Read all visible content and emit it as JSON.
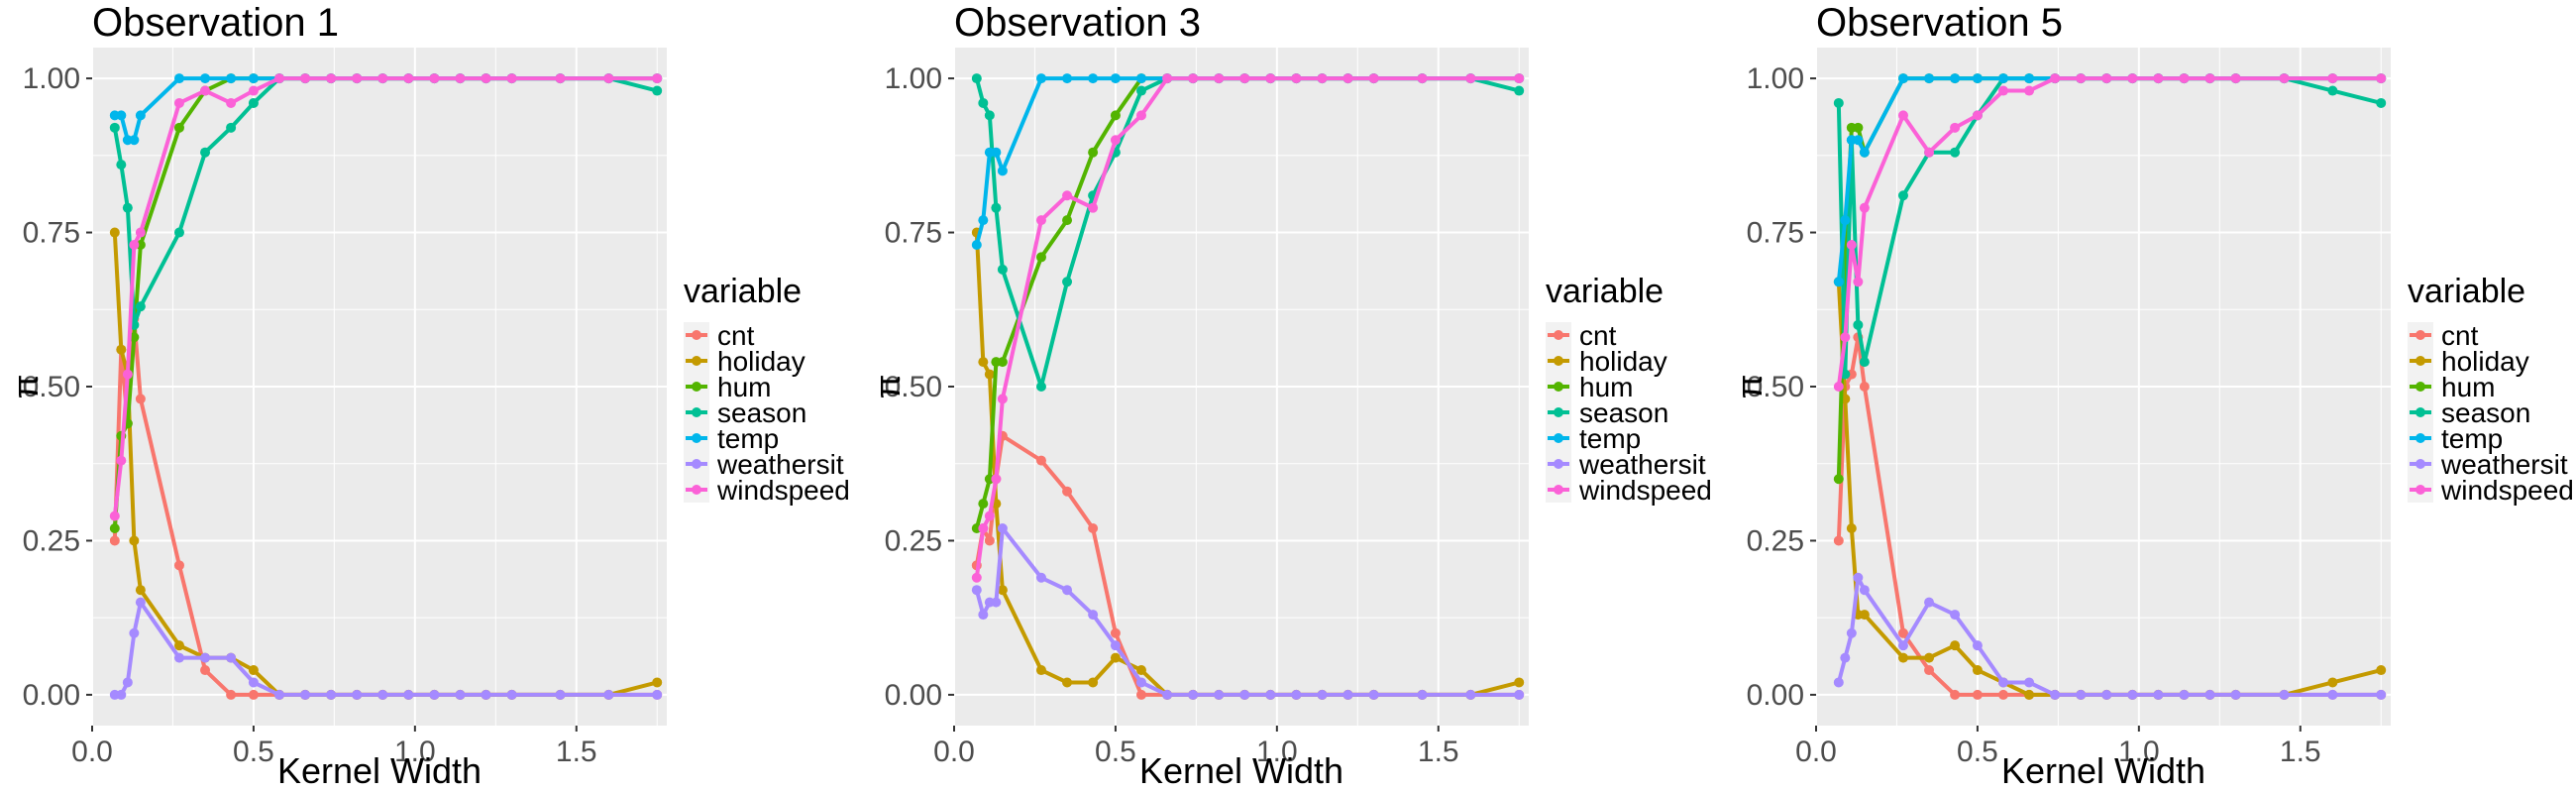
{
  "legend": {
    "title": "variable",
    "items": [
      {
        "name": "cnt",
        "color": "#F8766D"
      },
      {
        "name": "holiday",
        "color": "#C49A00"
      },
      {
        "name": "hum",
        "color": "#53B400"
      },
      {
        "name": "season",
        "color": "#00C094"
      },
      {
        "name": "temp",
        "color": "#00B6EB"
      },
      {
        "name": "weathersit",
        "color": "#A58AFF"
      },
      {
        "name": "windspeed",
        "color": "#FB61D7"
      }
    ]
  },
  "chart_data": [
    {
      "type": "line",
      "title": "Observation 1",
      "xlabel": "Kernel Width",
      "ylabel": "π",
      "xlim": [
        0,
        1.78
      ],
      "ylim": [
        0,
        1
      ],
      "xticks": [
        "0.0",
        "0.5",
        "1.0",
        "1.5"
      ],
      "yticks": [
        "0.00",
        "0.25",
        "0.50",
        "0.75",
        "1.00"
      ],
      "grid": true,
      "legend_position": "right",
      "series": [
        {
          "name": "cnt",
          "x": [
            0.07,
            0.09,
            0.11,
            0.13,
            0.15,
            0.27,
            0.35,
            0.43,
            0.5,
            0.58,
            0.66,
            0.74,
            0.82,
            0.9,
            0.98,
            1.06,
            1.14,
            1.22,
            1.3,
            1.45,
            1.6,
            1.75
          ],
          "y": [
            0.25,
            0.56,
            0.44,
            0.61,
            0.48,
            0.21,
            0.04,
            0,
            0,
            0,
            0,
            0,
            0,
            0,
            0,
            0,
            0,
            0,
            0,
            0,
            0,
            0
          ]
        },
        {
          "name": "holiday",
          "x": [
            0.07,
            0.09,
            0.11,
            0.13,
            0.15,
            0.27,
            0.35,
            0.43,
            0.5,
            0.58,
            0.66,
            0.74,
            0.82,
            0.9,
            0.98,
            1.06,
            1.14,
            1.22,
            1.3,
            1.45,
            1.6,
            1.75
          ],
          "y": [
            0.75,
            0.56,
            0.52,
            0.25,
            0.17,
            0.08,
            0.06,
            0.06,
            0.04,
            0,
            0,
            0,
            0,
            0,
            0,
            0,
            0,
            0,
            0,
            0,
            0,
            0.02
          ]
        },
        {
          "name": "hum",
          "x": [
            0.07,
            0.09,
            0.11,
            0.13,
            0.15,
            0.27,
            0.35,
            0.43,
            0.5,
            0.58,
            0.66,
            0.74,
            0.82,
            0.9,
            0.98,
            1.06,
            1.14,
            1.22,
            1.3,
            1.45,
            1.6,
            1.75
          ],
          "y": [
            0.27,
            0.42,
            0.44,
            0.58,
            0.73,
            0.92,
            0.98,
            1,
            1,
            1,
            1,
            1,
            1,
            1,
            1,
            1,
            1,
            1,
            1,
            1,
            1,
            1
          ]
        },
        {
          "name": "season",
          "x": [
            0.07,
            0.09,
            0.11,
            0.13,
            0.15,
            0.27,
            0.35,
            0.43,
            0.5,
            0.58,
            0.66,
            0.74,
            0.82,
            0.9,
            0.98,
            1.06,
            1.14,
            1.22,
            1.3,
            1.45,
            1.6,
            1.75
          ],
          "y": [
            0.92,
            0.86,
            0.79,
            0.6,
            0.63,
            0.75,
            0.88,
            0.92,
            0.96,
            1,
            1,
            1,
            1,
            1,
            1,
            1,
            1,
            1,
            1,
            1,
            1,
            0.98
          ]
        },
        {
          "name": "temp",
          "x": [
            0.07,
            0.09,
            0.11,
            0.13,
            0.15,
            0.27,
            0.35,
            0.43,
            0.5,
            0.58,
            0.66,
            0.74,
            0.82,
            0.9,
            0.98,
            1.06,
            1.14,
            1.22,
            1.3,
            1.45,
            1.6,
            1.75
          ],
          "y": [
            0.94,
            0.94,
            0.9,
            0.9,
            0.94,
            1,
            1,
            1,
            1,
            1,
            1,
            1,
            1,
            1,
            1,
            1,
            1,
            1,
            1,
            1,
            1,
            1
          ]
        },
        {
          "name": "weathersit",
          "x": [
            0.07,
            0.09,
            0.11,
            0.13,
            0.15,
            0.27,
            0.35,
            0.43,
            0.5,
            0.58,
            0.66,
            0.74,
            0.82,
            0.9,
            0.98,
            1.06,
            1.14,
            1.22,
            1.3,
            1.45,
            1.6,
            1.75
          ],
          "y": [
            0,
            0,
            0.02,
            0.1,
            0.15,
            0.06,
            0.06,
            0.06,
            0.02,
            0,
            0,
            0,
            0,
            0,
            0,
            0,
            0,
            0,
            0,
            0,
            0,
            0
          ]
        },
        {
          "name": "windspeed",
          "x": [
            0.07,
            0.09,
            0.11,
            0.13,
            0.15,
            0.27,
            0.35,
            0.43,
            0.5,
            0.58,
            0.66,
            0.74,
            0.82,
            0.9,
            0.98,
            1.06,
            1.14,
            1.22,
            1.3,
            1.45,
            1.6,
            1.75
          ],
          "y": [
            0.29,
            0.38,
            0.52,
            0.73,
            0.75,
            0.96,
            0.98,
            0.96,
            0.98,
            1,
            1,
            1,
            1,
            1,
            1,
            1,
            1,
            1,
            1,
            1,
            1,
            1
          ]
        }
      ]
    },
    {
      "type": "line",
      "title": "Observation 3",
      "xlabel": "Kernel Width",
      "ylabel": "π",
      "xlim": [
        0,
        1.78
      ],
      "ylim": [
        0,
        1
      ],
      "xticks": [
        "0.0",
        "0.5",
        "1.0",
        "1.5"
      ],
      "yticks": [
        "0.00",
        "0.25",
        "0.50",
        "0.75",
        "1.00"
      ],
      "grid": true,
      "legend_position": "right",
      "series": [
        {
          "name": "cnt",
          "x": [
            0.07,
            0.09,
            0.11,
            0.13,
            0.15,
            0.27,
            0.35,
            0.43,
            0.5,
            0.58,
            0.66,
            0.74,
            0.82,
            0.9,
            0.98,
            1.06,
            1.14,
            1.22,
            1.3,
            1.45,
            1.6,
            1.75
          ],
          "y": [
            0.21,
            0.27,
            0.25,
            0.35,
            0.42,
            0.38,
            0.33,
            0.27,
            0.1,
            0,
            0,
            0,
            0,
            0,
            0,
            0,
            0,
            0,
            0,
            0,
            0,
            0
          ]
        },
        {
          "name": "holiday",
          "x": [
            0.07,
            0.09,
            0.11,
            0.13,
            0.15,
            0.27,
            0.35,
            0.43,
            0.5,
            0.58,
            0.66,
            0.74,
            0.82,
            0.9,
            0.98,
            1.06,
            1.14,
            1.22,
            1.3,
            1.45,
            1.6,
            1.75
          ],
          "y": [
            0.75,
            0.54,
            0.52,
            0.31,
            0.17,
            0.04,
            0.02,
            0.02,
            0.06,
            0.04,
            0,
            0,
            0,
            0,
            0,
            0,
            0,
            0,
            0,
            0,
            0,
            0.02
          ]
        },
        {
          "name": "hum",
          "x": [
            0.07,
            0.09,
            0.11,
            0.13,
            0.15,
            0.27,
            0.35,
            0.43,
            0.5,
            0.58,
            0.66,
            0.74,
            0.82,
            0.9,
            0.98,
            1.06,
            1.14,
            1.22,
            1.3,
            1.45,
            1.6,
            1.75
          ],
          "y": [
            0.27,
            0.31,
            0.35,
            0.54,
            0.54,
            0.71,
            0.77,
            0.88,
            0.94,
            1,
            1,
            1,
            1,
            1,
            1,
            1,
            1,
            1,
            1,
            1,
            1,
            1
          ]
        },
        {
          "name": "season",
          "x": [
            0.07,
            0.09,
            0.11,
            0.13,
            0.15,
            0.27,
            0.35,
            0.43,
            0.5,
            0.58,
            0.66,
            0.74,
            0.82,
            0.9,
            0.98,
            1.06,
            1.14,
            1.22,
            1.3,
            1.45,
            1.6,
            1.75
          ],
          "y": [
            1,
            0.96,
            0.94,
            0.79,
            0.69,
            0.5,
            0.67,
            0.81,
            0.88,
            0.98,
            1,
            1,
            1,
            1,
            1,
            1,
            1,
            1,
            1,
            1,
            1,
            0.98
          ]
        },
        {
          "name": "temp",
          "x": [
            0.07,
            0.09,
            0.11,
            0.13,
            0.15,
            0.27,
            0.35,
            0.43,
            0.5,
            0.58,
            0.66,
            0.74,
            0.82,
            0.9,
            0.98,
            1.06,
            1.14,
            1.22,
            1.3,
            1.45,
            1.6,
            1.75
          ],
          "y": [
            0.73,
            0.77,
            0.88,
            0.88,
            0.85,
            1,
            1,
            1,
            1,
            1,
            1,
            1,
            1,
            1,
            1,
            1,
            1,
            1,
            1,
            1,
            1,
            1
          ]
        },
        {
          "name": "weathersit",
          "x": [
            0.07,
            0.09,
            0.11,
            0.13,
            0.15,
            0.27,
            0.35,
            0.43,
            0.5,
            0.58,
            0.66,
            0.74,
            0.82,
            0.9,
            0.98,
            1.06,
            1.14,
            1.22,
            1.3,
            1.45,
            1.6,
            1.75
          ],
          "y": [
            0.17,
            0.13,
            0.15,
            0.15,
            0.27,
            0.19,
            0.17,
            0.13,
            0.08,
            0.02,
            0,
            0,
            0,
            0,
            0,
            0,
            0,
            0,
            0,
            0,
            0,
            0
          ]
        },
        {
          "name": "windspeed",
          "x": [
            0.07,
            0.09,
            0.11,
            0.13,
            0.15,
            0.27,
            0.35,
            0.43,
            0.5,
            0.58,
            0.66,
            0.74,
            0.82,
            0.9,
            0.98,
            1.06,
            1.14,
            1.22,
            1.3,
            1.45,
            1.6,
            1.75
          ],
          "y": [
            0.19,
            0.27,
            0.29,
            0.35,
            0.48,
            0.77,
            0.81,
            0.79,
            0.9,
            0.94,
            1,
            1,
            1,
            1,
            1,
            1,
            1,
            1,
            1,
            1,
            1,
            1
          ]
        }
      ]
    },
    {
      "type": "line",
      "title": "Observation 5",
      "xlabel": "Kernel Width",
      "ylabel": "π",
      "xlim": [
        0,
        1.78
      ],
      "ylim": [
        0,
        1
      ],
      "xticks": [
        "0.0",
        "0.5",
        "1.0",
        "1.5"
      ],
      "yticks": [
        "0.00",
        "0.25",
        "0.50",
        "0.75",
        "1.00"
      ],
      "grid": true,
      "legend_position": "right",
      "series": [
        {
          "name": "cnt",
          "x": [
            0.07,
            0.09,
            0.11,
            0.13,
            0.15,
            0.27,
            0.35,
            0.43,
            0.5,
            0.58,
            0.66,
            0.74,
            0.82,
            0.9,
            0.98,
            1.06,
            1.14,
            1.22,
            1.3,
            1.45,
            1.6,
            1.75
          ],
          "y": [
            0.25,
            0.5,
            0.52,
            0.58,
            0.5,
            0.1,
            0.04,
            0,
            0,
            0,
            0,
            0,
            0,
            0,
            0,
            0,
            0,
            0,
            0,
            0,
            0,
            0
          ]
        },
        {
          "name": "holiday",
          "x": [
            0.07,
            0.09,
            0.11,
            0.13,
            0.15,
            0.27,
            0.35,
            0.43,
            0.5,
            0.58,
            0.66,
            0.74,
            0.82,
            0.9,
            0.98,
            1.06,
            1.14,
            1.22,
            1.3,
            1.45,
            1.6,
            1.75
          ],
          "y": [
            0.67,
            0.48,
            0.27,
            0.13,
            0.13,
            0.06,
            0.06,
            0.08,
            0.04,
            0.02,
            0,
            0,
            0,
            0,
            0,
            0,
            0,
            0,
            0,
            0,
            0.02,
            0.04
          ]
        },
        {
          "name": "hum",
          "x": [
            0.07,
            0.09,
            0.11,
            0.13,
            0.15,
            0.27,
            0.35,
            0.43,
            0.5,
            0.58,
            0.66,
            0.74,
            0.82,
            0.9,
            0.98,
            1.06,
            1.14,
            1.22,
            1.3,
            1.45,
            1.6,
            1.75
          ],
          "y": [
            0.35,
            0.7,
            0.92,
            0.92,
            0.88,
            1,
            1,
            1,
            1,
            1,
            1,
            1,
            1,
            1,
            1,
            1,
            1,
            1,
            1,
            1,
            1,
            1
          ]
        },
        {
          "name": "season",
          "x": [
            0.07,
            0.09,
            0.11,
            0.13,
            0.15,
            0.27,
            0.35,
            0.43,
            0.5,
            0.58,
            0.66,
            0.74,
            0.82,
            0.9,
            0.98,
            1.06,
            1.14,
            1.22,
            1.3,
            1.45,
            1.6,
            1.75
          ],
          "y": [
            0.96,
            0.52,
            0.9,
            0.6,
            0.54,
            0.81,
            0.88,
            0.88,
            0.94,
            1,
            1,
            1,
            1,
            1,
            1,
            1,
            1,
            1,
            1,
            1,
            0.98,
            0.96
          ]
        },
        {
          "name": "temp",
          "x": [
            0.07,
            0.09,
            0.11,
            0.13,
            0.15,
            0.27,
            0.35,
            0.43,
            0.5,
            0.58,
            0.66,
            0.74,
            0.82,
            0.9,
            0.98,
            1.06,
            1.14,
            1.22,
            1.3,
            1.45,
            1.6,
            1.75
          ],
          "y": [
            0.67,
            0.77,
            0.9,
            0.9,
            0.88,
            1,
            1,
            1,
            1,
            1,
            1,
            1,
            1,
            1,
            1,
            1,
            1,
            1,
            1,
            1,
            1,
            1
          ]
        },
        {
          "name": "weathersit",
          "x": [
            0.07,
            0.09,
            0.11,
            0.13,
            0.15,
            0.27,
            0.35,
            0.43,
            0.5,
            0.58,
            0.66,
            0.74,
            0.82,
            0.9,
            0.98,
            1.06,
            1.14,
            1.22,
            1.3,
            1.45,
            1.6,
            1.75
          ],
          "y": [
            0.02,
            0.06,
            0.1,
            0.19,
            0.17,
            0.08,
            0.15,
            0.13,
            0.08,
            0.02,
            0.02,
            0,
            0,
            0,
            0,
            0,
            0,
            0,
            0,
            0,
            0,
            0
          ]
        },
        {
          "name": "windspeed",
          "x": [
            0.07,
            0.09,
            0.11,
            0.13,
            0.15,
            0.27,
            0.35,
            0.43,
            0.5,
            0.58,
            0.66,
            0.74,
            0.82,
            0.9,
            0.98,
            1.06,
            1.14,
            1.22,
            1.3,
            1.45,
            1.6,
            1.75
          ],
          "y": [
            0.5,
            0.58,
            0.73,
            0.67,
            0.79,
            0.94,
            0.88,
            0.92,
            0.94,
            0.98,
            0.98,
            1,
            1,
            1,
            1,
            1,
            1,
            1,
            1,
            1,
            1,
            1
          ]
        }
      ]
    }
  ]
}
